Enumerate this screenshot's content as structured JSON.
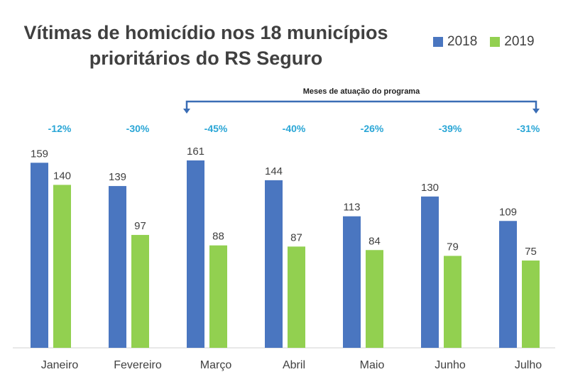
{
  "colors": {
    "series_2018": "#4a76c0",
    "series_2019": "#92d050",
    "pct": "#2aa6d6",
    "text": "#404040",
    "bracket": "#3a6db5"
  },
  "chart_data": {
    "type": "bar",
    "title_line1": "Vítimas de homicídio nos 18 municípios",
    "title_line2": "prioritários do RS Seguro",
    "categories": [
      "Janeiro",
      "Fevereiro",
      "Março",
      "Abril",
      "Maio",
      "Junho",
      "Julho"
    ],
    "series": [
      {
        "name": "2018",
        "values": [
          159,
          139,
          161,
          144,
          113,
          130,
          109
        ]
      },
      {
        "name": "2019",
        "values": [
          140,
          97,
          88,
          87,
          84,
          79,
          75
        ]
      }
    ],
    "percent_changes": [
      "-12%",
      "-30%",
      "-45%",
      "-40%",
      "-26%",
      "-39%",
      "-31%"
    ],
    "annotation": "Meses de atuação do programa",
    "ylim": [
      0,
      170
    ],
    "grid": false,
    "legend_position": "top-right"
  }
}
